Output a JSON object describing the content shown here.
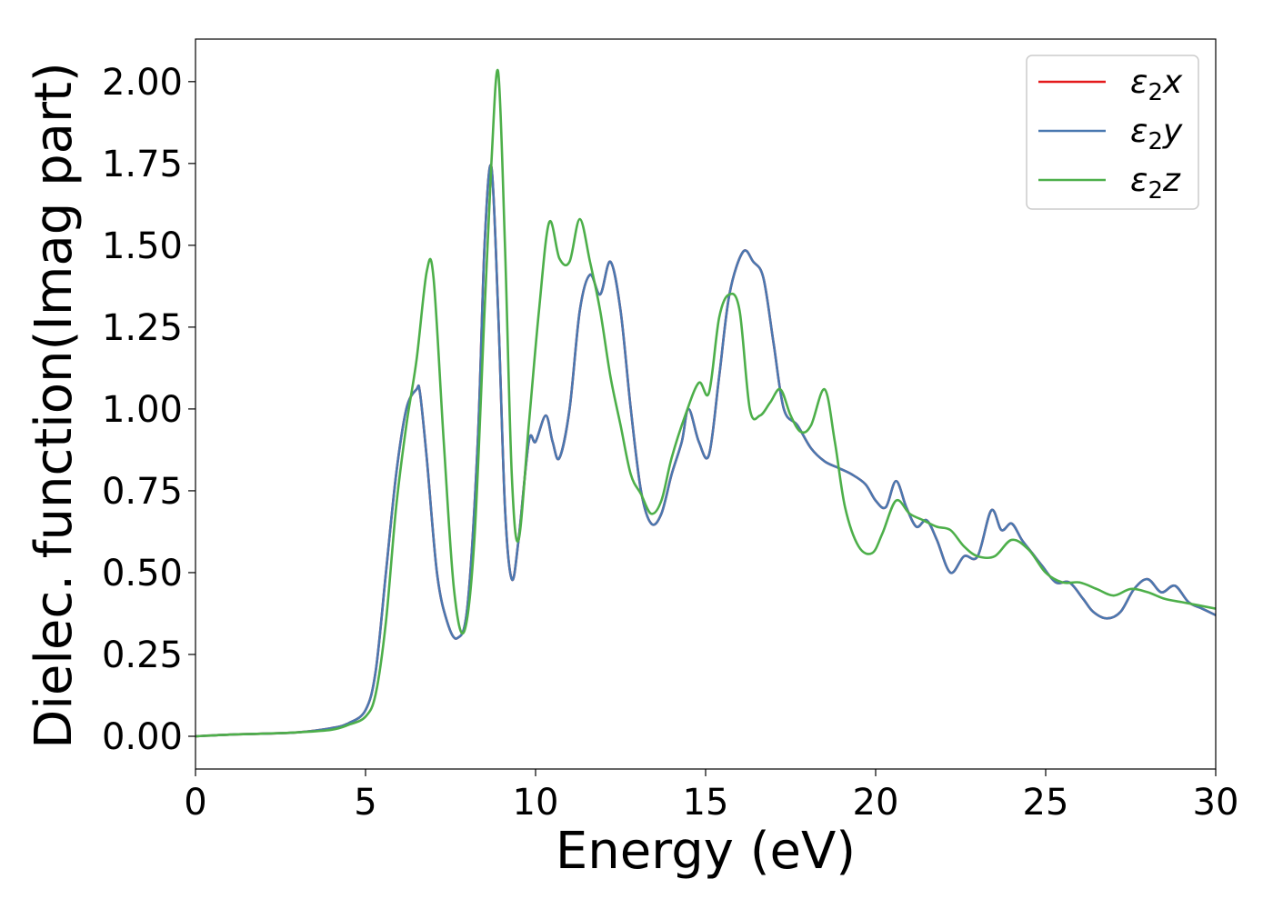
{
  "chart_data": {
    "type": "line",
    "title": "",
    "xlabel": "Energy (eV)",
    "ylabel": "Dielec. function(Imag part)",
    "xlim": [
      0,
      30
    ],
    "ylim": [
      -0.1,
      2.13
    ],
    "xticks": [
      0,
      5,
      10,
      15,
      20,
      25,
      30
    ],
    "xtick_labels": [
      "0",
      "5",
      "10",
      "15",
      "20",
      "25",
      "30"
    ],
    "yticks": [
      0,
      0.25,
      0.5,
      0.75,
      1.0,
      1.25,
      1.5,
      1.75,
      2.0
    ],
    "ytick_labels": [
      "0.00",
      "0.25",
      "0.50",
      "0.75",
      "1.00",
      "1.25",
      "1.50",
      "1.75",
      "2.00"
    ],
    "grid": false,
    "legend_position": "upper-right",
    "series": [
      {
        "name": "ε2x",
        "symbol": "ε",
        "sub": "2",
        "axis": "x",
        "color": "#e41a1c",
        "x": [
          0,
          1,
          2,
          3,
          4,
          4.5,
          5,
          5.3,
          5.6,
          5.9,
          6.2,
          6.5,
          6.6,
          6.8,
          7.1,
          7.4,
          7.7,
          8.0,
          8.3,
          8.5,
          8.7,
          8.9,
          9.1,
          9.3,
          9.5,
          9.8,
          10.0,
          10.3,
          10.5,
          10.7,
          11.0,
          11.3,
          11.6,
          11.9,
          12.2,
          12.5,
          12.8,
          13.1,
          13.4,
          13.7,
          14.0,
          14.3,
          14.5,
          14.8,
          15.1,
          15.4,
          15.7,
          16.1,
          16.4,
          16.7,
          17.0,
          17.3,
          17.7,
          18.1,
          18.5,
          18.9,
          19.3,
          19.7,
          20.0,
          20.3,
          20.6,
          20.9,
          21.2,
          21.5,
          21.8,
          22.2,
          22.6,
          23.0,
          23.4,
          23.7,
          24.0,
          24.3,
          24.6,
          24.9,
          25.3,
          25.7,
          26.1,
          26.4,
          26.8,
          27.2,
          27.6,
          28.0,
          28.4,
          28.8,
          29.2,
          29.6,
          30
        ],
        "y": [
          0,
          0.005,
          0.008,
          0.012,
          0.025,
          0.04,
          0.08,
          0.2,
          0.5,
          0.8,
          1.0,
          1.06,
          1.05,
          0.85,
          0.5,
          0.35,
          0.3,
          0.4,
          0.9,
          1.5,
          1.74,
          1.3,
          0.7,
          0.48,
          0.6,
          0.9,
          0.9,
          0.98,
          0.9,
          0.85,
          1.0,
          1.3,
          1.41,
          1.35,
          1.45,
          1.3,
          1.0,
          0.75,
          0.65,
          0.68,
          0.8,
          0.9,
          1.0,
          0.9,
          0.86,
          1.1,
          1.35,
          1.48,
          1.45,
          1.4,
          1.2,
          1.0,
          0.95,
          0.88,
          0.84,
          0.82,
          0.8,
          0.77,
          0.72,
          0.7,
          0.78,
          0.7,
          0.64,
          0.66,
          0.6,
          0.5,
          0.55,
          0.55,
          0.69,
          0.63,
          0.65,
          0.6,
          0.56,
          0.52,
          0.47,
          0.47,
          0.42,
          0.38,
          0.36,
          0.38,
          0.45,
          0.48,
          0.44,
          0.46,
          0.41,
          0.39,
          0.37
        ]
      },
      {
        "name": "ε2y",
        "symbol": "ε",
        "sub": "2",
        "axis": "y",
        "color": "#4a78b0",
        "x": [
          0,
          1,
          2,
          3,
          4,
          4.5,
          5,
          5.3,
          5.6,
          5.9,
          6.2,
          6.5,
          6.6,
          6.8,
          7.1,
          7.4,
          7.7,
          8.0,
          8.3,
          8.5,
          8.7,
          8.9,
          9.1,
          9.3,
          9.5,
          9.8,
          10.0,
          10.3,
          10.5,
          10.7,
          11.0,
          11.3,
          11.6,
          11.9,
          12.2,
          12.5,
          12.8,
          13.1,
          13.4,
          13.7,
          14.0,
          14.3,
          14.5,
          14.8,
          15.1,
          15.4,
          15.7,
          16.1,
          16.4,
          16.7,
          17.0,
          17.3,
          17.7,
          18.1,
          18.5,
          18.9,
          19.3,
          19.7,
          20.0,
          20.3,
          20.6,
          20.9,
          21.2,
          21.5,
          21.8,
          22.2,
          22.6,
          23.0,
          23.4,
          23.7,
          24.0,
          24.3,
          24.6,
          24.9,
          25.3,
          25.7,
          26.1,
          26.4,
          26.8,
          27.2,
          27.6,
          28.0,
          28.4,
          28.8,
          29.2,
          29.6,
          30
        ],
        "y": [
          0,
          0.005,
          0.008,
          0.012,
          0.025,
          0.04,
          0.08,
          0.2,
          0.5,
          0.8,
          1.0,
          1.06,
          1.05,
          0.85,
          0.5,
          0.35,
          0.3,
          0.4,
          0.9,
          1.5,
          1.74,
          1.3,
          0.7,
          0.48,
          0.6,
          0.9,
          0.9,
          0.98,
          0.9,
          0.85,
          1.0,
          1.3,
          1.41,
          1.35,
          1.45,
          1.3,
          1.0,
          0.75,
          0.65,
          0.68,
          0.8,
          0.9,
          1.0,
          0.9,
          0.86,
          1.1,
          1.35,
          1.48,
          1.45,
          1.4,
          1.2,
          1.0,
          0.95,
          0.88,
          0.84,
          0.82,
          0.8,
          0.77,
          0.72,
          0.7,
          0.78,
          0.7,
          0.64,
          0.66,
          0.6,
          0.5,
          0.55,
          0.55,
          0.69,
          0.63,
          0.65,
          0.6,
          0.56,
          0.52,
          0.47,
          0.47,
          0.42,
          0.38,
          0.36,
          0.38,
          0.45,
          0.48,
          0.44,
          0.46,
          0.41,
          0.39,
          0.37
        ]
      },
      {
        "name": "ε2z",
        "symbol": "ε",
        "sub": "2",
        "axis": "z",
        "color": "#4daf4a",
        "x": [
          0,
          1,
          2,
          3,
          4,
          4.5,
          5,
          5.3,
          5.6,
          5.9,
          6.2,
          6.5,
          6.8,
          7.0,
          7.3,
          7.6,
          7.9,
          8.2,
          8.5,
          8.7,
          8.9,
          9.1,
          9.3,
          9.5,
          9.8,
          10.1,
          10.4,
          10.7,
          11.0,
          11.3,
          11.6,
          11.9,
          12.2,
          12.5,
          12.8,
          13.1,
          13.4,
          13.7,
          14.0,
          14.4,
          14.8,
          15.1,
          15.4,
          15.7,
          16.0,
          16.3,
          16.6,
          16.9,
          17.2,
          17.5,
          17.8,
          18.1,
          18.5,
          18.8,
          19.1,
          19.5,
          19.9,
          20.2,
          20.6,
          21.0,
          21.4,
          21.8,
          22.2,
          22.6,
          23.0,
          23.5,
          24.0,
          24.5,
          25.0,
          25.5,
          26.0,
          26.5,
          27.0,
          27.5,
          28.0,
          28.5,
          29.0,
          29.5,
          30
        ],
        "y": [
          0,
          0.005,
          0.008,
          0.012,
          0.02,
          0.035,
          0.06,
          0.13,
          0.35,
          0.7,
          0.95,
          1.15,
          1.42,
          1.4,
          0.9,
          0.45,
          0.32,
          0.6,
          1.3,
          1.75,
          2.03,
          1.5,
          0.8,
          0.6,
          0.95,
          1.3,
          1.57,
          1.46,
          1.45,
          1.58,
          1.45,
          1.3,
          1.1,
          0.95,
          0.8,
          0.74,
          0.68,
          0.72,
          0.85,
          0.98,
          1.08,
          1.05,
          1.28,
          1.35,
          1.3,
          1.0,
          0.98,
          1.02,
          1.06,
          0.98,
          0.93,
          0.95,
          1.06,
          0.9,
          0.7,
          0.58,
          0.56,
          0.62,
          0.72,
          0.68,
          0.66,
          0.64,
          0.63,
          0.58,
          0.55,
          0.55,
          0.6,
          0.57,
          0.5,
          0.47,
          0.47,
          0.45,
          0.43,
          0.45,
          0.44,
          0.42,
          0.41,
          0.4,
          0.39
        ]
      }
    ]
  }
}
